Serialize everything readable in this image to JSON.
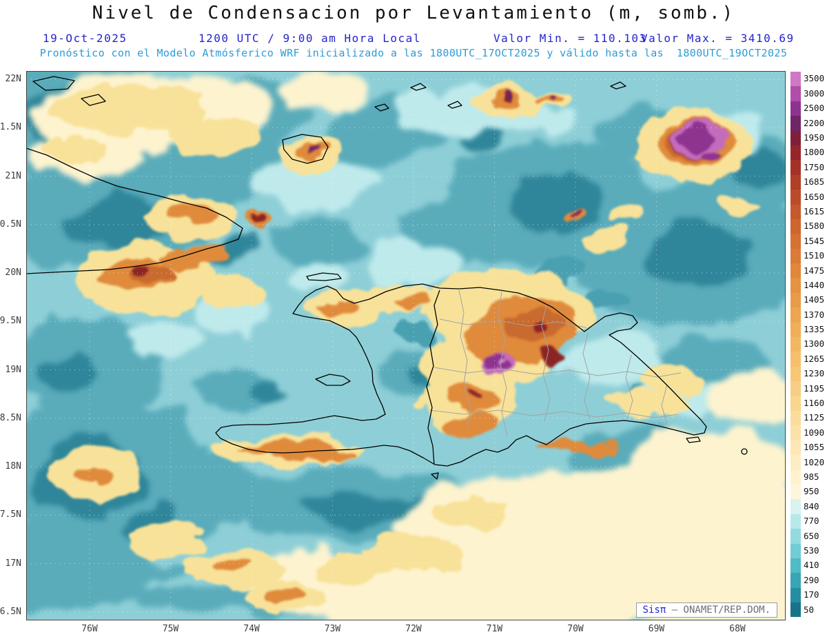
{
  "title": "Nivel de Condensacion por Levantamiento (m, somb.)",
  "header": {
    "date": "19-Oct-2025",
    "time": "1200 UTC / 9:00 am Hora Local",
    "min_label": "Valor Min. = 110.103",
    "max_label": "Valor Max. = 3410.69",
    "model_line": "Pronóstico con el Modelo Atmósferico WRF inicializado a las 1800UTC_17OCT2025 y válido hasta las  1800UTC_19OCT2025"
  },
  "map": {
    "y_axis_labels": [
      "22N",
      "1.5N",
      "21N",
      "0.5N",
      "20N",
      "9.5N",
      "19N",
      "8.5N",
      "18N",
      "7.5N",
      "17N",
      "6.5N"
    ],
    "x_axis_labels": [
      "76W",
      "75W",
      "74W",
      "73W",
      "72W",
      "71W",
      "70W",
      "69W",
      "68W"
    ],
    "watermark": {
      "brand": "Sisπ",
      "org": "– ONAMET/REP.DOM."
    }
  },
  "colorbar": {
    "units": "m",
    "entries": [
      {
        "value": "3500",
        "color": "#d078c6"
      },
      {
        "value": "3000",
        "color": "#b04ea9"
      },
      {
        "value": "2500",
        "color": "#8f3390"
      },
      {
        "value": "2200",
        "color": "#702569"
      },
      {
        "value": "1950",
        "color": "#801f3c"
      },
      {
        "value": "1800",
        "color": "#96262a"
      },
      {
        "value": "1750",
        "color": "#a53226"
      },
      {
        "value": "1685",
        "color": "#b23f27"
      },
      {
        "value": "1650",
        "color": "#bc4c29"
      },
      {
        "value": "1615",
        "color": "#c5592c"
      },
      {
        "value": "1580",
        "color": "#cd652f"
      },
      {
        "value": "1545",
        "color": "#d47133"
      },
      {
        "value": "1510",
        "color": "#da7c37"
      },
      {
        "value": "1475",
        "color": "#e0873c"
      },
      {
        "value": "1440",
        "color": "#e59242"
      },
      {
        "value": "1405",
        "color": "#e99c48"
      },
      {
        "value": "1370",
        "color": "#eda550"
      },
      {
        "value": "1335",
        "color": "#f0ae58"
      },
      {
        "value": "1300",
        "color": "#f3b761"
      },
      {
        "value": "1265",
        "color": "#f5bf6b"
      },
      {
        "value": "1230",
        "color": "#f7c776"
      },
      {
        "value": "1195",
        "color": "#f9ce82"
      },
      {
        "value": "1160",
        "color": "#fad58e"
      },
      {
        "value": "1125",
        "color": "#fbdc9b"
      },
      {
        "value": "1090",
        "color": "#fce2a8"
      },
      {
        "value": "1055",
        "color": "#fde8b5"
      },
      {
        "value": "1020",
        "color": "#fdedc2"
      },
      {
        "value": "985",
        "color": "#fef2cf"
      },
      {
        "value": "950",
        "color": "#fef6dc"
      },
      {
        "value": "840",
        "color": "#daf2f0"
      },
      {
        "value": "770",
        "color": "#b7e8ea"
      },
      {
        "value": "650",
        "color": "#93dbe0"
      },
      {
        "value": "530",
        "color": "#70ccd5"
      },
      {
        "value": "410",
        "color": "#50bac7"
      },
      {
        "value": "290",
        "color": "#37a5b5"
      },
      {
        "value": "170",
        "color": "#258ea2"
      },
      {
        "value": "50",
        "color": "#187389"
      }
    ]
  },
  "colors": {
    "header_blue": "#2424cc",
    "model_cyan": "#2d9bd6",
    "axis_text": "#3c3c3c",
    "watermark_gray": "#6e6e6e",
    "ocean_base": "#8ecfd7"
  }
}
